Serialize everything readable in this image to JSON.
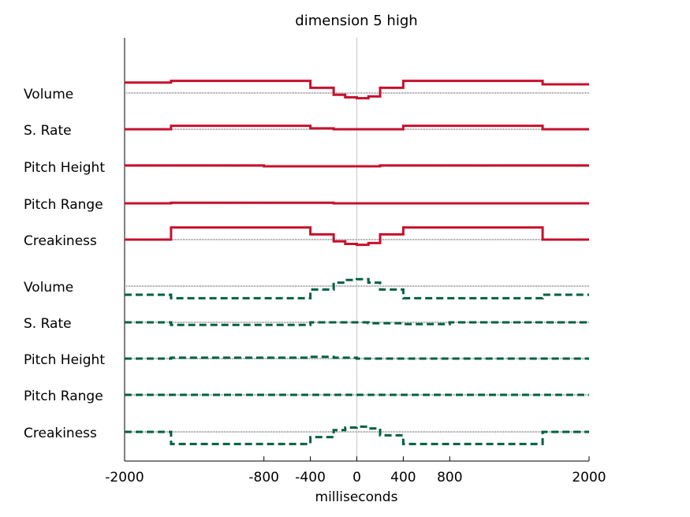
{
  "chart_data": {
    "type": "line",
    "title": "dimension  5 high",
    "xlabel": "milliseconds",
    "ylabel": "",
    "xlim": [
      -2000,
      2000
    ],
    "xticks": [
      -2000,
      -800,
      -400,
      0,
      400,
      800,
      2000
    ],
    "grid": false,
    "legend": "none",
    "colors": {
      "high": "#c8102e",
      "low": "#006040",
      "baseline": "#777777",
      "zero_line": "#c8c8c8",
      "axis": "#000000"
    },
    "row_labels": [
      "Volume",
      "S. Rate",
      "Pitch Height",
      "Pitch Range",
      "Creakiness",
      "Volume",
      "S. Rate",
      "Pitch Height",
      "Pitch Range",
      "Creakiness"
    ],
    "groups": [
      {
        "color": "#c8102e",
        "style": "solid",
        "rows": [
          {
            "label": "Volume",
            "y": [
              0.6,
              0.7,
              0.7,
              0.3,
              -0.1,
              -0.25,
              -0.3,
              -0.2,
              0.3,
              0.7,
              0.7,
              0.5
            ]
          },
          {
            "label": "S. Rate",
            "y": [
              0.0,
              0.2,
              0.2,
              0.05,
              0.0,
              0.0,
              0.0,
              0.0,
              0.0,
              0.2,
              0.2,
              0.0
            ]
          },
          {
            "label": "Pitch Height",
            "y": [
              0.05,
              0.05,
              0.0,
              0.0,
              0.0,
              0.0,
              0.0,
              0.0,
              0.05,
              0.05,
              0.05,
              0.05
            ]
          },
          {
            "label": "Pitch Range",
            "y": [
              0.0,
              0.03,
              0.03,
              0.03,
              0.0,
              0.0,
              0.0,
              0.0,
              0.0,
              0.0,
              0.0,
              0.0
            ]
          },
          {
            "label": "Creakiness",
            "y": [
              0.0,
              0.7,
              0.7,
              0.3,
              -0.1,
              -0.25,
              -0.3,
              -0.2,
              0.3,
              0.7,
              0.7,
              0.0
            ]
          }
        ]
      },
      {
        "color": "#006040",
        "style": "dashed",
        "rows": [
          {
            "label": "Volume",
            "y": [
              -0.5,
              -0.7,
              -0.7,
              -0.2,
              0.2,
              0.35,
              0.4,
              0.2,
              -0.2,
              -0.7,
              -0.7,
              -0.5
            ]
          },
          {
            "label": "S. Rate",
            "y": [
              0.0,
              -0.15,
              -0.15,
              0.0,
              0.0,
              0.0,
              0.0,
              -0.05,
              -0.05,
              -0.1,
              0.0,
              0.0
            ]
          },
          {
            "label": "Pitch Height",
            "y": [
              0.0,
              0.05,
              0.05,
              0.1,
              0.05,
              0.05,
              0.0,
              0.0,
              0.0,
              0.0,
              0.0,
              0.0
            ]
          },
          {
            "label": "Pitch Range",
            "y": [
              0.0,
              0.0,
              0.0,
              0.0,
              0.0,
              0.0,
              0.0,
              0.0,
              0.0,
              0.0,
              0.0,
              0.0
            ]
          },
          {
            "label": "Creakiness",
            "y": [
              0.0,
              -0.7,
              -0.7,
              -0.3,
              0.1,
              0.25,
              0.3,
              0.2,
              -0.2,
              -0.7,
              -0.7,
              0.0
            ]
          }
        ]
      }
    ],
    "bin_edges_ms": [
      -2000,
      -1600,
      -800,
      -400,
      -200,
      -100,
      0,
      100,
      200,
      400,
      800,
      1600,
      2000
    ]
  }
}
